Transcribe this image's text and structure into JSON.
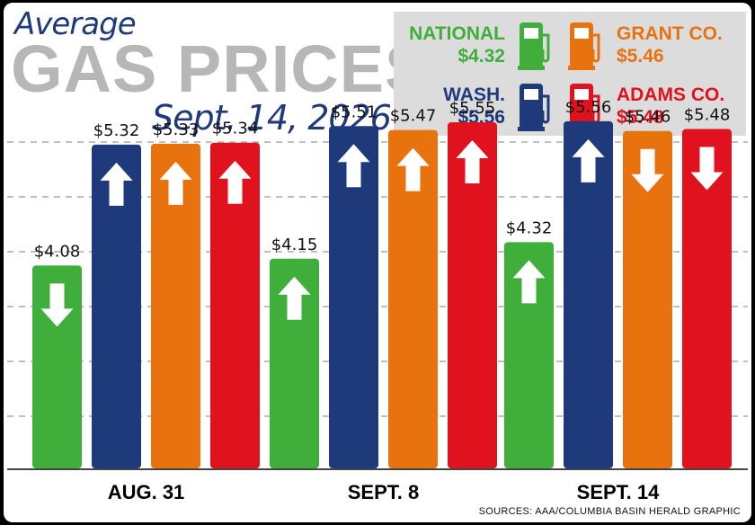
{
  "title": {
    "line1": "Average",
    "line2": "GAS PRICES",
    "line3": "Sept. 14, 2026"
  },
  "legend": [
    {
      "key": "national",
      "name": "NATIONAL",
      "price": "$4.32",
      "color": "#3fae3a"
    },
    {
      "key": "grant",
      "name": "GRANT CO.",
      "price": "$5.46",
      "color": "#e8730e"
    },
    {
      "key": "wash",
      "name": "WASH.",
      "price": "$5.56",
      "color": "#1f3a7a"
    },
    {
      "key": "adams",
      "name": "ADAMS CO.",
      "price": "$5.48",
      "color": "#e0121d"
    }
  ],
  "chart_data": {
    "type": "bar",
    "title": "Average GAS PRICES",
    "categories": [
      "AUG. 31",
      "SEPT. 8",
      "SEPT. 14"
    ],
    "series": [
      {
        "name": "NATIONAL",
        "color": "#3fae3a",
        "values": [
          4.08,
          4.15,
          4.32
        ],
        "labels": [
          "$4.08",
          "$4.15",
          "$4.32"
        ],
        "trend": [
          "down",
          "up",
          "up"
        ]
      },
      {
        "name": "WASH.",
        "color": "#1f3a7a",
        "values": [
          5.32,
          5.51,
          5.56
        ],
        "labels": [
          "$5.32",
          "$5.51",
          "$5.56"
        ],
        "trend": [
          "up",
          "up",
          "up"
        ]
      },
      {
        "name": "GRANT CO.",
        "color": "#e8730e",
        "values": [
          5.33,
          5.47,
          5.46
        ],
        "labels": [
          "$5.33",
          "$5.47",
          "$5.46"
        ],
        "trend": [
          "up",
          "up",
          "down"
        ]
      },
      {
        "name": "ADAMS CO.",
        "color": "#e0121d",
        "values": [
          5.34,
          5.55,
          5.48
        ],
        "labels": [
          "$5.34",
          "$5.55",
          "$5.48"
        ],
        "trend": [
          "up",
          "up",
          "down"
        ]
      }
    ],
    "ylim": [
      2.0,
      5.9
    ],
    "grid": true,
    "legend_position": "top-right"
  },
  "source": "SOURCES: AAA/COLUMBIA BASIN HERALD GRAPHIC"
}
